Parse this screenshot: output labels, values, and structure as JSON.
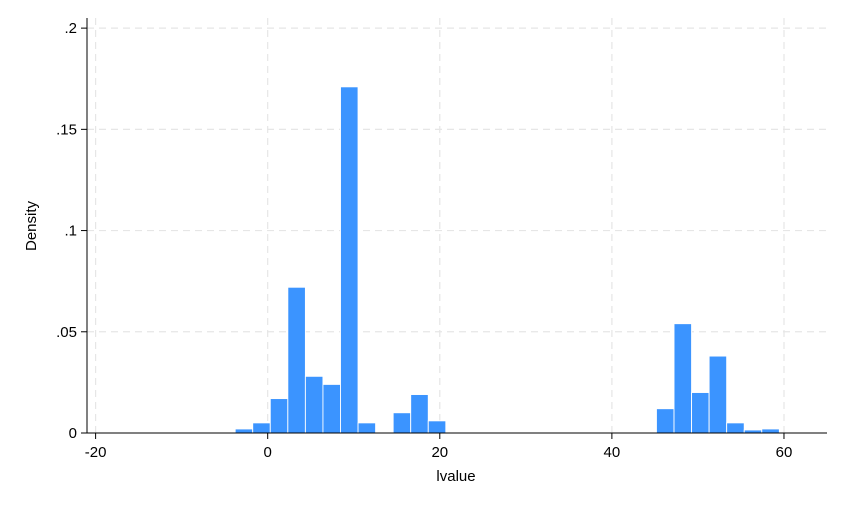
{
  "chart_data": {
    "type": "bar",
    "subtype": "histogram",
    "xlabel": "lvalue",
    "ylabel": "Density",
    "xlim": [
      -21,
      65
    ],
    "ylim": [
      0,
      0.205
    ],
    "x_ticks": [
      -20,
      0,
      20,
      40,
      60
    ],
    "x_tick_labels": [
      "-20",
      "0",
      "20",
      "40",
      "60"
    ],
    "y_ticks": [
      0,
      0.05,
      0.1,
      0.15,
      0.2
    ],
    "y_tick_labels": [
      "0",
      ".05",
      ".1",
      ".15",
      ".2"
    ],
    "grid": true,
    "bar_color": "#3b94ff",
    "bin_width": 2.04,
    "bins": [
      {
        "x0": -20.1,
        "x1": -18.06,
        "density": 0.0
      },
      {
        "x0": -18.06,
        "x1": -16.02,
        "density": 0.0
      },
      {
        "x0": -16.02,
        "x1": -13.98,
        "density": 0.0
      },
      {
        "x0": -13.98,
        "x1": -11.94,
        "density": 0.0
      },
      {
        "x0": -11.94,
        "x1": -9.9,
        "density": 0.0
      },
      {
        "x0": -9.9,
        "x1": -7.86,
        "density": 0.0
      },
      {
        "x0": -7.86,
        "x1": -5.82,
        "density": 0.0
      },
      {
        "x0": -5.82,
        "x1": -3.78,
        "density": 0.0
      },
      {
        "x0": -3.78,
        "x1": -1.74,
        "density": 0.002
      },
      {
        "x0": -1.74,
        "x1": 0.3,
        "density": 0.005
      },
      {
        "x0": 0.3,
        "x1": 2.34,
        "density": 0.017
      },
      {
        "x0": 2.34,
        "x1": 4.38,
        "density": 0.072
      },
      {
        "x0": 4.38,
        "x1": 6.42,
        "density": 0.028
      },
      {
        "x0": 6.42,
        "x1": 8.46,
        "density": 0.024
      },
      {
        "x0": 8.46,
        "x1": 10.5,
        "density": 0.171
      },
      {
        "x0": 10.5,
        "x1": 12.54,
        "density": 0.005
      },
      {
        "x0": 12.54,
        "x1": 14.58,
        "density": 0.0
      },
      {
        "x0": 14.58,
        "x1": 16.62,
        "density": 0.01
      },
      {
        "x0": 16.62,
        "x1": 18.66,
        "density": 0.019
      },
      {
        "x0": 18.66,
        "x1": 20.7,
        "density": 0.006
      },
      {
        "x0": 20.7,
        "x1": 22.74,
        "density": 0.0
      },
      {
        "x0": 22.74,
        "x1": 24.78,
        "density": 0.0
      },
      {
        "x0": 24.78,
        "x1": 26.82,
        "density": 0.0
      },
      {
        "x0": 26.82,
        "x1": 28.86,
        "density": 0.0
      },
      {
        "x0": 28.86,
        "x1": 30.9,
        "density": 0.0
      },
      {
        "x0": 30.9,
        "x1": 32.94,
        "density": 0.0
      },
      {
        "x0": 32.94,
        "x1": 34.98,
        "density": 0.0
      },
      {
        "x0": 34.98,
        "x1": 37.02,
        "density": 0.0
      },
      {
        "x0": 37.02,
        "x1": 39.06,
        "density": 0.0
      },
      {
        "x0": 39.06,
        "x1": 41.1,
        "density": 0.0
      },
      {
        "x0": 41.1,
        "x1": 43.14,
        "density": 0.0
      },
      {
        "x0": 43.14,
        "x1": 45.18,
        "density": 0.0
      },
      {
        "x0": 45.18,
        "x1": 47.22,
        "density": 0.012
      },
      {
        "x0": 47.22,
        "x1": 49.26,
        "density": 0.054
      },
      {
        "x0": 49.26,
        "x1": 51.3,
        "density": 0.02
      },
      {
        "x0": 51.3,
        "x1": 53.34,
        "density": 0.038
      },
      {
        "x0": 53.34,
        "x1": 55.38,
        "density": 0.005
      },
      {
        "x0": 55.38,
        "x1": 57.42,
        "density": 0.0015
      },
      {
        "x0": 57.42,
        "x1": 59.46,
        "density": 0.002
      },
      {
        "x0": 59.46,
        "x1": 61.5,
        "density": 0.0
      },
      {
        "x0": 61.5,
        "x1": 63.54,
        "density": 0.0
      }
    ]
  }
}
